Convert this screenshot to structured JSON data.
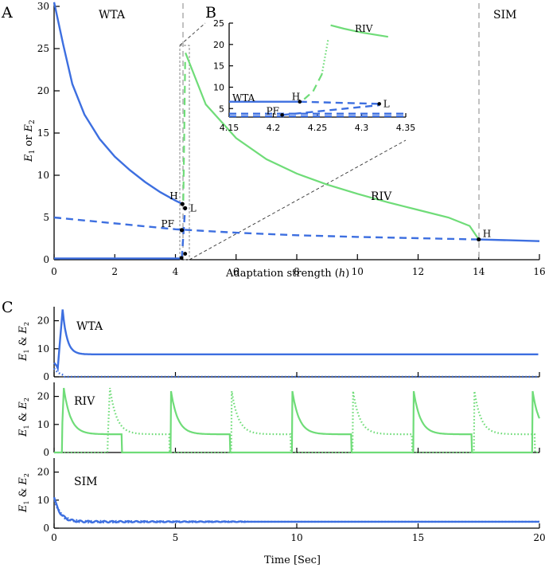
{
  "colors": {
    "stable_wta": "#3d6fe0",
    "oscillation": "#6fdc78",
    "vline": "#bbbbbb"
  },
  "panel_labels": {
    "a": "A",
    "b": "B",
    "c": "C"
  },
  "chart_data": [
    {
      "id": "A",
      "type": "line",
      "xlabel": "Adaptation strength (h)",
      "xlabel_main": "Adaptation strength (",
      "xlabel_var": "h",
      "xlabel_close": ")",
      "ylabel": "E1 or E2",
      "ylabel_parts": [
        "E",
        "1",
        " or ",
        "E",
        "2"
      ],
      "xlim": [
        0,
        16
      ],
      "ylim": [
        0,
        30
      ],
      "xticks": [
        "0",
        "2",
        "4",
        "6",
        "8",
        "10",
        "12",
        "14",
        "16"
      ],
      "yticks": [
        "0",
        "5",
        "10",
        "15",
        "20",
        "25",
        "30"
      ],
      "regions": [
        "WTA",
        "RIV",
        "SIM"
      ],
      "region_boundaries_h": [
        4.2,
        14.0
      ],
      "special_points": [
        {
          "name": "H",
          "x": 4.23,
          "y": 6.6
        },
        {
          "name": "L",
          "x": 4.32,
          "y": 6.1
        },
        {
          "name": "PF",
          "x": 4.21,
          "y": 3.5
        },
        {
          "name": "H",
          "x": 14.0,
          "y": 2.4
        }
      ],
      "series": [
        {
          "style": "solid",
          "color": "blue",
          "x": [
            0,
            0.3,
            0.6,
            1,
            1.5,
            2,
            2.5,
            3,
            3.5,
            4,
            4.23
          ],
          "y": [
            30.5,
            25.5,
            20.8,
            17.2,
            14.3,
            12.2,
            10.6,
            9.2,
            8.0,
            7.0,
            6.6
          ]
        },
        {
          "style": "solid",
          "color": "blue",
          "x": [
            0,
            4.2
          ],
          "y": [
            0.15,
            0.15
          ]
        },
        {
          "style": "dashed",
          "color": "blue",
          "x": [
            0,
            4,
            6,
            8,
            10,
            12,
            14
          ],
          "y": [
            5.0,
            3.6,
            3.2,
            2.9,
            2.7,
            2.55,
            2.4
          ]
        },
        {
          "style": "dashed",
          "color": "blue",
          "x": [
            4.21,
            4.32
          ],
          "y": [
            0.2,
            6.1
          ]
        },
        {
          "style": "solid",
          "color": "blue",
          "x": [
            14,
            15,
            16
          ],
          "y": [
            2.4,
            2.3,
            2.2
          ]
        },
        {
          "style": "solid",
          "color": "green",
          "x": [
            4.33,
            5,
            6,
            7,
            8,
            9,
            10,
            11,
            12,
            13,
            13.7,
            14
          ],
          "y": [
            24.5,
            18.4,
            14.4,
            11.9,
            10.2,
            8.9,
            7.8,
            6.8,
            5.9,
            5.0,
            4.0,
            2.4
          ]
        },
        {
          "style": "dashed",
          "color": "green",
          "x": [
            4.26,
            4.29,
            4.32
          ],
          "y": [
            7.0,
            15.0,
            23.5
          ]
        }
      ]
    },
    {
      "id": "B",
      "type": "line",
      "title": "",
      "xlim": [
        4.15,
        4.35
      ],
      "ylim": [
        3,
        25
      ],
      "xticks": [
        "4.15",
        "4.2",
        "4.25",
        "4.3",
        "4.35"
      ],
      "yticks": [
        "5",
        "10",
        "15",
        "20",
        "25"
      ],
      "labels": [
        "WTA",
        "RIV",
        "H",
        "L",
        "PF"
      ],
      "special_points": [
        {
          "name": "H",
          "x": 4.23,
          "y": 6.6
        },
        {
          "name": "L",
          "x": 4.32,
          "y": 6.1
        },
        {
          "name": "PF",
          "x": 4.21,
          "y": 3.5
        }
      ],
      "series": [
        {
          "style": "solid",
          "color": "blue",
          "x": [
            4.15,
            4.23
          ],
          "y": [
            6.6,
            6.6
          ]
        },
        {
          "style": "dashed",
          "color": "blue",
          "x": [
            4.23,
            4.32
          ],
          "y": [
            6.6,
            6.1
          ]
        },
        {
          "style": "dashed",
          "color": "blue",
          "x": [
            4.21,
            4.32
          ],
          "y": [
            3.5,
            5.8
          ]
        },
        {
          "style": "dashed",
          "color": "blue",
          "x": [
            4.15,
            4.35
          ],
          "y": [
            3.8,
            3.8
          ]
        },
        {
          "style": "dashed",
          "color": "blue",
          "x": [
            4.15,
            4.35
          ],
          "y": [
            3.2,
            3.2
          ]
        },
        {
          "style": "dashed",
          "color": "green",
          "x": [
            4.235,
            4.245,
            4.255
          ],
          "y": [
            7.2,
            9.0,
            13.0
          ]
        },
        {
          "style": "dotted",
          "color": "green",
          "x": [
            4.255,
            4.262
          ],
          "y": [
            13.0,
            21.0
          ]
        },
        {
          "style": "solid",
          "color": "green",
          "x": [
            4.265,
            4.28,
            4.3,
            4.33
          ],
          "y": [
            24.5,
            23.7,
            22.8,
            21.8
          ]
        }
      ]
    },
    {
      "id": "C",
      "type": "line",
      "xlabel": "Time [Sec]",
      "ylabel": "E1 & E2",
      "ylabel_parts": [
        "E",
        "1",
        " & ",
        "E",
        "2"
      ],
      "xlim": [
        0,
        20
      ],
      "ylim": [
        0,
        25
      ],
      "xticks": [
        "0",
        "5",
        "10",
        "15",
        "20"
      ],
      "yticks": [
        "0",
        "10",
        "20"
      ],
      "subplots": [
        {
          "label": "WTA",
          "steady_E1": 8,
          "steady_E2": 0,
          "initial_peak": 24
        },
        {
          "label": "RIV",
          "period_sec": 5,
          "peak": 23,
          "plateau": 6.5,
          "e1_peak_times": [
            0.4,
            4.8,
            9.8,
            14.8,
            19.7
          ],
          "e2_peak_times": [
            2.3,
            7.3,
            12.3,
            17.3
          ]
        },
        {
          "label": "SIM",
          "steady_E1": 2.3,
          "steady_E2": 2.3,
          "initial_peak": 11
        }
      ]
    }
  ]
}
